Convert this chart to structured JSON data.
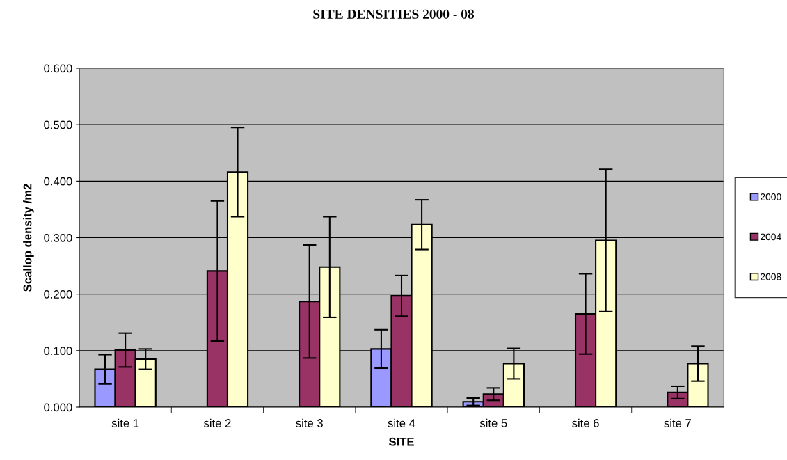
{
  "chart_data": {
    "type": "bar",
    "title": "SITE DENSITIES 2000 - 08",
    "xlabel": "SITE",
    "ylabel": "Scallop density /m2",
    "categories": [
      "site 1",
      "site 2",
      "site 3",
      "site 4",
      "site 5",
      "site 6",
      "site 7"
    ],
    "series": [
      {
        "name": "2000",
        "color": "#9999ff",
        "values": [
          0.067,
          null,
          null,
          0.103,
          0.0095,
          null,
          null
        ],
        "errors": [
          0.026,
          null,
          null,
          0.034,
          0.0066,
          null,
          null
        ]
      },
      {
        "name": "2004",
        "color": "#993366",
        "values": [
          0.101,
          0.241,
          0.187,
          0.197,
          0.023,
          0.165,
          0.026
        ],
        "errors": [
          0.03,
          0.124,
          0.1,
          0.036,
          0.011,
          0.071,
          0.011
        ]
      },
      {
        "name": "2008",
        "color": "#ffffcc",
        "values": [
          0.085,
          0.416,
          0.248,
          0.323,
          0.077,
          0.295,
          0.077
        ],
        "errors": [
          0.018,
          0.079,
          0.089,
          0.044,
          0.027,
          0.126,
          0.031
        ]
      }
    ],
    "ylim": [
      0,
      0.6
    ],
    "yticks": [
      {
        "value": 0,
        "label": "0.000"
      },
      {
        "value": 0.1,
        "label": "0.100"
      },
      {
        "value": 0.2,
        "label": "0.200"
      },
      {
        "value": 0.3,
        "label": "0.300"
      },
      {
        "value": 0.4,
        "label": "0.400"
      },
      {
        "value": 0.5,
        "label": "0.500"
      },
      {
        "value": 0.6,
        "label": "0.600"
      }
    ],
    "grid": "y",
    "legend": "right"
  }
}
